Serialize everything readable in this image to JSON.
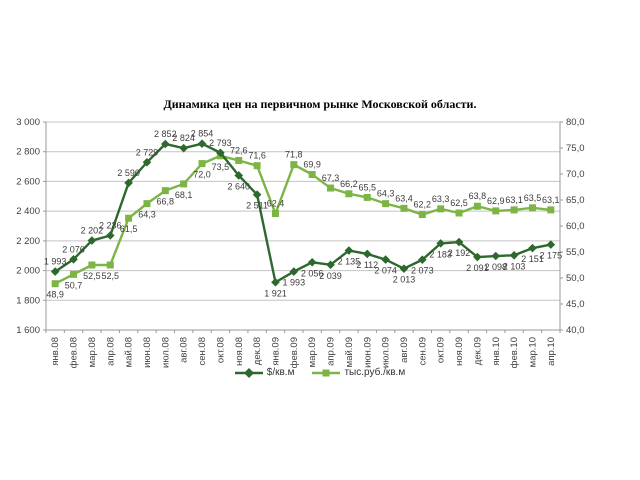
{
  "title": "Динамика цен на первичном рынке Московской области.",
  "legend": {
    "series1_label": "$/кв.м",
    "series2_label": "тыс.руб./кв.м"
  },
  "colors": {
    "series1": "#2D682D",
    "series2": "#7DB446",
    "grid": "#c3c3c3",
    "axis": "#9a9a9a",
    "label_text": "#3d3d3d",
    "background": "#ffffff"
  },
  "chart_data": {
    "type": "line",
    "title": "Динамика цен на первичном рынке Московской области.",
    "legend_position": "bottom",
    "grid": "horizontal",
    "categories": [
      "янв.08",
      "фев.08",
      "мар.08",
      "апр.08",
      "май.08",
      "июн.08",
      "июл.08",
      "авг.08",
      "сен.08",
      "окт.08",
      "ноя.08",
      "дек.08",
      "янв.09",
      "фев.09",
      "мар.09",
      "апр.09",
      "май.09",
      "июн.09",
      "июл.09",
      "авг.09",
      "сен.09",
      "окт.09",
      "ноя.09",
      "дек.09",
      "янв.10",
      "фев.10",
      "мар.10",
      "апр.10"
    ],
    "series": [
      {
        "name": "$/кв.м",
        "axis": "left",
        "marker": "diamond",
        "color": "#2D682D",
        "values": [
          1993,
          2076,
          2202,
          2236,
          2590,
          2729,
          2852,
          2824,
          2854,
          2793,
          2640,
          2511,
          1921,
          1993,
          2056,
          2039,
          2135,
          2112,
          2074,
          2013,
          2073,
          2183,
          2192,
          2091,
          2098,
          2103,
          2151,
          2175
        ],
        "labels": [
          "1 993",
          "2 076",
          "2 202",
          "2 236",
          "2 590",
          "2 729",
          "2 852",
          "2 824",
          "2 854",
          "2 793",
          "2 640",
          "2 511",
          "1 921",
          "1 993",
          "2 056",
          "2 039",
          "2 135",
          "2 112",
          "2 074",
          "2 013",
          "2 073",
          "2 183",
          "2 192",
          "2 091",
          "2 098",
          "2 103",
          "2 151",
          "2 175"
        ]
      },
      {
        "name": "тыс.руб./кв.м",
        "axis": "right",
        "marker": "square",
        "color": "#7DB446",
        "values": [
          48.9,
          50.7,
          52.5,
          52.5,
          61.5,
          64.3,
          66.8,
          68.1,
          72.0,
          73.5,
          72.6,
          71.6,
          62.4,
          71.8,
          69.9,
          67.3,
          66.2,
          65.5,
          64.3,
          63.4,
          62.2,
          63.3,
          62.5,
          63.8,
          62.9,
          63.1,
          63.5,
          63.1
        ],
        "labels": [
          "48,9",
          "50,7",
          "52,5",
          "52,5",
          "61,5",
          "64,3",
          "66,8",
          "68,1",
          "72,0",
          "73,5",
          "72,6",
          "71,6",
          "62,4",
          "71,8",
          "69,9",
          "67,3",
          "66,2",
          "65,5",
          "64,3",
          "63,4",
          "62,2",
          "63,3",
          "62,5",
          "63,8",
          "62,9",
          "63,1",
          "63,5",
          "63,1"
        ]
      }
    ],
    "left_axis": {
      "min": 1600,
      "max": 3000,
      "step": 200,
      "ticks": [
        "1 600",
        "1 800",
        "2 000",
        "2 200",
        "2 400",
        "2 600",
        "2 800",
        "3 000"
      ]
    },
    "right_axis": {
      "min": 40,
      "max": 80,
      "step": 5,
      "ticks": [
        "40,0",
        "45,0",
        "50,0",
        "55,0",
        "60,0",
        "65,0",
        "70,0",
        "75,0",
        "80,0"
      ]
    }
  }
}
